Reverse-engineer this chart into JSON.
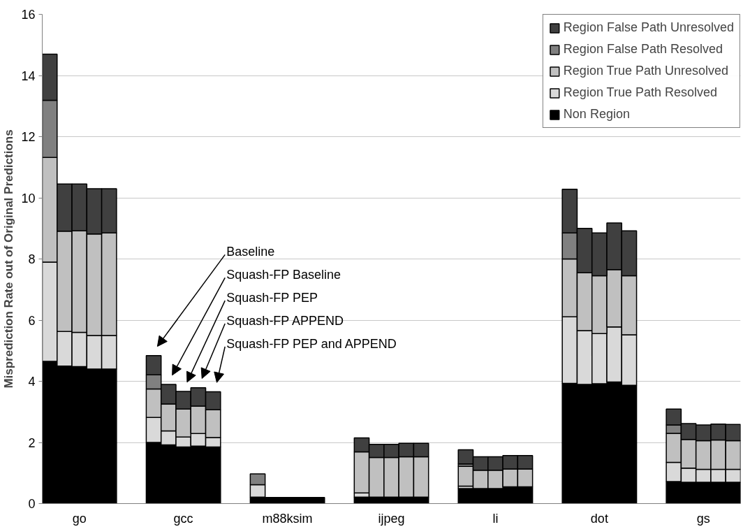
{
  "chart_data": {
    "type": "bar",
    "stacked": true,
    "ylabel": "Misprediction Rate out of Original Predictions",
    "categories": [
      null,
      null,
      "go",
      null,
      null,
      null,
      null,
      null,
      null,
      "gcc",
      null,
      null,
      null,
      null,
      null,
      null,
      "m88ksim",
      null,
      null,
      null,
      null,
      null,
      null,
      "ijpeg",
      null,
      null,
      null,
      null,
      null,
      null,
      "li",
      null,
      null,
      null,
      null,
      null,
      null,
      "dot",
      null,
      null,
      null,
      null,
      null,
      null,
      "gs",
      null,
      null
    ],
    "series": [
      {
        "name": "Non Region",
        "color": "#000000",
        "values": [
          4.65,
          4.5,
          4.48,
          4.4,
          4.4,
          null,
          null,
          2.0,
          1.92,
          1.85,
          1.88,
          1.85,
          null,
          null,
          0.21,
          0.2,
          0.2,
          0.2,
          0.2,
          null,
          null,
          0.21,
          0.21,
          0.21,
          0.21,
          0.21,
          null,
          null,
          0.49,
          0.49,
          0.49,
          0.55,
          0.55,
          null,
          null,
          3.93,
          3.9,
          3.92,
          3.98,
          3.87,
          null,
          null,
          0.72,
          0.7,
          0.7,
          0.7,
          0.7
        ]
      },
      {
        "name": "Region True Path Resolved",
        "color": "#d9d9d9",
        "values": [
          3.25,
          1.13,
          1.12,
          1.1,
          1.1,
          null,
          null,
          0.82,
          0.46,
          0.33,
          0.41,
          0.31,
          null,
          null,
          0.41,
          0,
          0,
          0,
          0,
          null,
          null,
          0.14,
          0,
          0,
          0,
          0,
          null,
          null,
          0.08,
          0,
          0,
          0,
          0,
          null,
          null,
          2.18,
          1.76,
          1.64,
          1.8,
          1.65,
          null,
          null,
          0.63,
          0.46,
          0.42,
          0.42,
          0.42
        ]
      },
      {
        "name": "Region True Path Unresolved",
        "color": "#c0c0c0",
        "values": [
          3.42,
          3.28,
          3.32,
          3.32,
          3.35,
          null,
          null,
          0.93,
          0.88,
          0.91,
          0.9,
          0.91,
          null,
          null,
          0,
          0,
          0,
          0,
          0,
          null,
          null,
          1.34,
          1.3,
          1.3,
          1.32,
          1.32,
          null,
          null,
          0.65,
          0.6,
          0.6,
          0.58,
          0.58,
          null,
          null,
          1.89,
          1.89,
          1.89,
          1.87,
          1.93,
          null,
          null,
          0.95,
          0.94,
          0.94,
          0.96,
          0.94
        ]
      },
      {
        "name": "Region False Path Resolved",
        "color": "#808080",
        "values": [
          1.87,
          0,
          0,
          0,
          0,
          null,
          null,
          0.46,
          0,
          0,
          0,
          0,
          null,
          null,
          0.35,
          0,
          0,
          0,
          0,
          null,
          null,
          0,
          0,
          0,
          0,
          0,
          null,
          null,
          0.08,
          0,
          0,
          0,
          0,
          null,
          null,
          0.85,
          0,
          0,
          0,
          0,
          null,
          null,
          0.27,
          0,
          0,
          0,
          0
        ]
      },
      {
        "name": "Region False Path Unresolved",
        "color": "#404040",
        "values": [
          1.51,
          1.54,
          1.53,
          1.48,
          1.45,
          null,
          null,
          0.63,
          0.64,
          0.58,
          0.6,
          0.59,
          null,
          null,
          0,
          0,
          0,
          0,
          0,
          null,
          null,
          0.46,
          0.43,
          0.43,
          0.44,
          0.44,
          null,
          null,
          0.46,
          0.44,
          0.44,
          0.44,
          0.44,
          null,
          null,
          1.43,
          1.45,
          1.4,
          1.53,
          1.47,
          null,
          null,
          0.52,
          0.52,
          0.51,
          0.52,
          0.53
        ]
      }
    ],
    "ylim": [
      0,
      16
    ],
    "yticks": [
      0,
      2,
      4,
      6,
      8,
      10,
      12,
      14,
      16
    ],
    "grid": "y",
    "legend": "top right",
    "annotations": [
      "Baseline",
      "Squash-FP Baseline",
      "Squash-FP PEP",
      "Squash-FP APPEND",
      "Squash-FP PEP and APPEND"
    ]
  }
}
